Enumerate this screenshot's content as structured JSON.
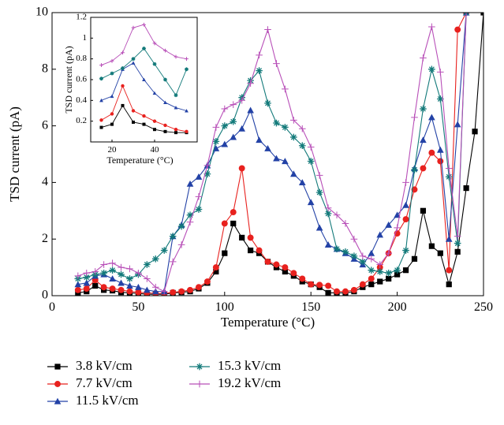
{
  "chart_data": [
    {
      "type": "line",
      "xlabel": "Temperature (°C)",
      "ylabel": "TSD current (pA)",
      "x": [
        15,
        20,
        25,
        30,
        35,
        40,
        45,
        50,
        55,
        60,
        65,
        70,
        75,
        80,
        85,
        90,
        95,
        100,
        105,
        110,
        115,
        120,
        125,
        130,
        135,
        140,
        145,
        150,
        155,
        160,
        165,
        170,
        175,
        180,
        185,
        190,
        195,
        200,
        205,
        210,
        215,
        220,
        225,
        230,
        235,
        240,
        245,
        250
      ],
      "xlim": [
        0,
        250
      ],
      "xticks": [
        0,
        50,
        100,
        150,
        200,
        250
      ],
      "ylim": [
        0,
        10
      ],
      "yticks": [
        0,
        2,
        4,
        6,
        8,
        10
      ],
      "series": [
        {
          "name": "3.8 kV/cm",
          "color": "#000000",
          "marker": "square",
          "values": [
            0.1,
            0.15,
            0.35,
            0.2,
            0.18,
            0.12,
            0.1,
            0.08,
            0.05,
            0.05,
            0.05,
            0.1,
            0.12,
            0.15,
            0.25,
            0.45,
            0.85,
            1.5,
            2.55,
            2.05,
            1.6,
            1.5,
            1.2,
            1.0,
            0.85,
            0.7,
            0.5,
            0.4,
            0.3,
            0.1,
            0.1,
            0.1,
            0.15,
            0.3,
            0.4,
            0.5,
            0.6,
            0.75,
            0.9,
            1.3,
            3.0,
            1.75,
            1.5,
            0.4,
            1.55,
            3.8,
            5.8,
            10
          ]
        },
        {
          "name": "7.7 kV/cm",
          "color": "#e8211e",
          "marker": "circle",
          "values": [
            0.2,
            0.25,
            0.55,
            0.3,
            0.25,
            0.2,
            0.15,
            0.12,
            0.1,
            0.08,
            0.08,
            0.12,
            0.15,
            0.2,
            0.3,
            0.5,
            1.0,
            2.55,
            2.95,
            4.5,
            2.05,
            1.6,
            1.2,
            1.1,
            1.0,
            0.8,
            0.6,
            0.4,
            0.38,
            0.35,
            0.15,
            0.15,
            0.2,
            0.4,
            0.6,
            1.0,
            1.5,
            2.2,
            2.7,
            3.75,
            4.5,
            5.05,
            4.75,
            0.9,
            9.4,
            10,
            null,
            null
          ]
        },
        {
          "name": "11.5 kV/cm",
          "color": "#2342a6",
          "marker": "triangle",
          "values": [
            0.4,
            0.45,
            0.7,
            0.75,
            0.6,
            0.45,
            0.35,
            0.3,
            0.2,
            0.15,
            0.15,
            2.1,
            2.5,
            3.95,
            4.2,
            4.6,
            5.2,
            5.35,
            5.6,
            5.9,
            6.55,
            5.5,
            5.2,
            4.85,
            4.75,
            4.3,
            4.0,
            3.3,
            2.4,
            1.8,
            1.65,
            1.5,
            1.3,
            1.1,
            1.5,
            2.15,
            2.5,
            2.85,
            3.2,
            4.5,
            5.5,
            6.3,
            5.15,
            2.0,
            6.05,
            10,
            null,
            null
          ]
        },
        {
          "name": "15.3 kV/cm",
          "color": "#137a7a",
          "marker": "star",
          "values": [
            0.6,
            0.65,
            0.75,
            0.8,
            0.9,
            0.75,
            0.6,
            0.75,
            1.1,
            1.3,
            1.6,
            2.1,
            2.45,
            2.85,
            3.05,
            4.3,
            5.45,
            6.0,
            6.15,
            7.0,
            7.6,
            7.95,
            6.8,
            6.1,
            5.95,
            5.6,
            5.3,
            4.75,
            3.65,
            2.9,
            1.65,
            1.55,
            1.4,
            1.2,
            0.9,
            0.85,
            0.8,
            0.9,
            1.6,
            4.45,
            6.6,
            8.0,
            6.95,
            4.2,
            1.85,
            10,
            null,
            null
          ]
        },
        {
          "name": "19.2 kV/cm",
          "color": "#b84fb8",
          "marker": "plus",
          "values": [
            0.7,
            0.8,
            0.85,
            1.1,
            1.15,
            1.0,
            0.95,
            0.8,
            0.6,
            0.3,
            0.15,
            1.2,
            1.8,
            2.6,
            3.5,
            4.6,
            5.95,
            6.6,
            6.75,
            6.9,
            7.5,
            8.5,
            9.4,
            8.2,
            7.3,
            6.2,
            5.9,
            5.25,
            4.25,
            3.1,
            2.85,
            2.55,
            2.0,
            1.4,
            1.3,
            1.1,
            1.5,
            2.4,
            4.0,
            6.3,
            8.4,
            9.5,
            7.9,
            4.5,
            2.1,
            10,
            null,
            null
          ]
        }
      ]
    },
    {
      "type": "line",
      "xlabel": "Temperature (°C)",
      "ylabel": "TSD current (pA)",
      "x": [
        15,
        20,
        25,
        30,
        35,
        40,
        45,
        50,
        55
      ],
      "xlim": [
        10,
        60
      ],
      "xticks": [
        20,
        40
      ],
      "ylim": [
        0,
        1.2
      ],
      "yticks": [
        0.2,
        0.4,
        0.6,
        0.8,
        1,
        1.2
      ],
      "series": [
        {
          "color": "#000000",
          "marker": "square",
          "values": [
            0.14,
            0.17,
            0.35,
            0.19,
            0.17,
            0.12,
            0.1,
            0.09,
            0.09
          ]
        },
        {
          "color": "#e8211e",
          "marker": "circle",
          "values": [
            0.21,
            0.27,
            0.54,
            0.3,
            0.25,
            0.2,
            0.16,
            0.12,
            0.1
          ]
        },
        {
          "color": "#2342a6",
          "marker": "triangle",
          "values": [
            0.4,
            0.44,
            0.7,
            0.76,
            0.6,
            0.47,
            0.38,
            0.33,
            0.3
          ]
        },
        {
          "color": "#137a7a",
          "marker": "star",
          "values": [
            0.61,
            0.66,
            0.71,
            0.8,
            0.9,
            0.75,
            0.6,
            0.45,
            0.7
          ]
        },
        {
          "color": "#b84fb8",
          "marker": "plus",
          "values": [
            0.74,
            0.78,
            0.86,
            1.1,
            1.13,
            0.95,
            0.88,
            0.82,
            0.8
          ]
        }
      ]
    }
  ]
}
